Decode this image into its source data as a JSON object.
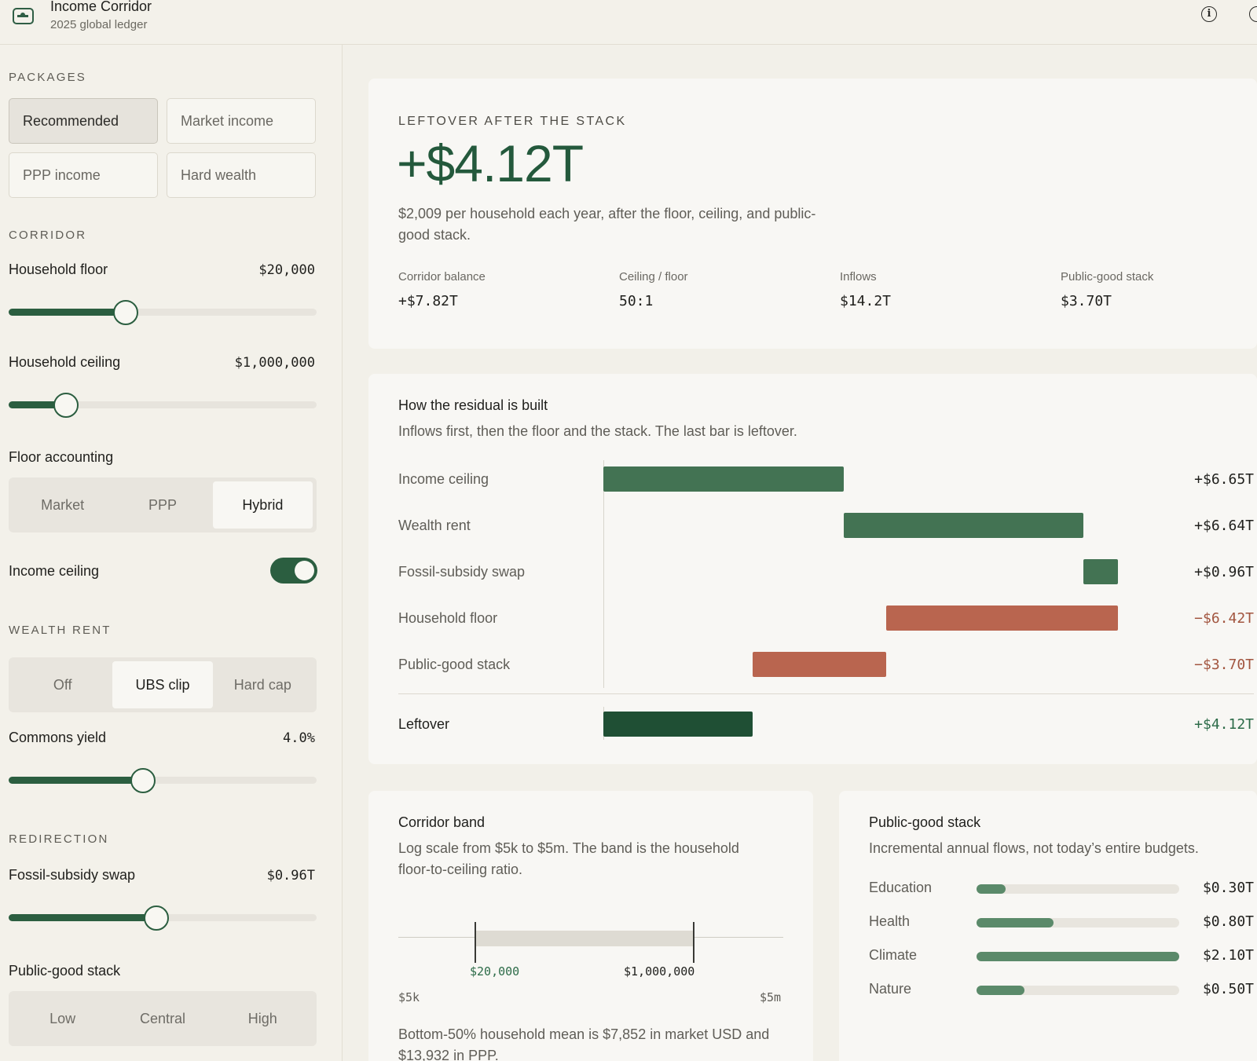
{
  "header": {
    "title": "Income Corridor",
    "subtitle": "2025 global ledger",
    "info_icon": "info-icon",
    "more_icon": "circle-icon"
  },
  "sidebar": {
    "packages_title": "PACKAGES",
    "packages": [
      "Recommended",
      "Market income",
      "PPP income",
      "Hard wealth"
    ],
    "active_package": "Recommended",
    "corridor_title": "CORRIDOR",
    "household_floor": {
      "label": "Household floor",
      "value": "$20,000",
      "level": 0.38
    },
    "household_ceiling": {
      "label": "Household ceiling",
      "value": "$1,000,000",
      "level": 0.185
    },
    "floor_accounting": {
      "label": "Floor accounting",
      "options": [
        "Market",
        "PPP",
        "Hybrid"
      ],
      "selected": "Hybrid"
    },
    "income_ceiling": {
      "label": "Income ceiling",
      "on": true
    },
    "wealth_rent_title": "WEALTH RENT",
    "wealth_rent": {
      "options": [
        "Off",
        "UBS clip",
        "Hard cap"
      ],
      "selected": "UBS clip"
    },
    "commons_yield": {
      "label": "Commons yield",
      "value": "4.0%",
      "level": 0.435
    },
    "redirection_title": "REDIRECTION",
    "fossil_swap": {
      "label": "Fossil-subsidy swap",
      "value": "$0.96T",
      "level": 0.48
    },
    "public_good_stack": {
      "label": "Public-good stack",
      "options": [
        "Low",
        "Central",
        "High"
      ],
      "selected": "Central"
    }
  },
  "summary": {
    "kicker": "LEFTOVER AFTER THE STACK",
    "value": "+$4.12T",
    "description": "$2,009 per household each year, after the floor, ceiling, and public-good stack.",
    "stats": [
      {
        "label": "Corridor balance",
        "value": "+$7.82T"
      },
      {
        "label": "Ceiling / floor",
        "value": "50:1"
      },
      {
        "label": "Inflows",
        "value": "$14.2T"
      },
      {
        "label": "Public-good stack",
        "value": "$3.70T"
      }
    ]
  },
  "residual": {
    "title": "How the residual is built",
    "subtitle": "Inflows first, then the floor and the stack. The last bar is leftover.",
    "rows": [
      {
        "label": "Income ceiling",
        "start": 0,
        "end": 6.65,
        "value": "+$6.65T",
        "kind": "inflow"
      },
      {
        "label": "Wealth rent",
        "start": 6.65,
        "end": 13.29,
        "value": "+$6.64T",
        "kind": "inflow"
      },
      {
        "label": "Fossil-subsidy swap",
        "start": 13.29,
        "end": 14.25,
        "value": "+$0.96T",
        "kind": "inflow"
      },
      {
        "label": "Household floor",
        "start": 7.83,
        "end": 14.25,
        "value": "−$6.42T",
        "kind": "outflow"
      },
      {
        "label": "Public-good stack",
        "start": 4.13,
        "end": 7.83,
        "value": "−$3.70T",
        "kind": "outflow"
      }
    ],
    "leftover": {
      "label": "Leftover",
      "start": 0,
      "end": 4.12,
      "value": "+$4.12T"
    },
    "colors": {
      "inflow": "#437353",
      "outflow": "#b9654f",
      "leftover": "#1f4f34",
      "outflow_text": "#a2553f",
      "leftover_text": "#2c6b48"
    }
  },
  "corridor_band": {
    "title": "Corridor band",
    "subtitle": "Log scale from $5k to $5m. The band is the household floor-to-ceiling ratio.",
    "floor_label": "$20,000",
    "ceiling_label": "$1,000,000",
    "min_label": "$5k",
    "max_label": "$5m",
    "note": "Bottom-50% household mean is $7,852 in market USD and $13,932 in PPP."
  },
  "stack": {
    "title": "Public-good stack",
    "subtitle": "Incremental annual flows, not today’s entire budgets.",
    "items": [
      {
        "label": "Education",
        "value": "$0.30T",
        "amount": 0.3
      },
      {
        "label": "Health",
        "value": "$0.80T",
        "amount": 0.8
      },
      {
        "label": "Climate",
        "value": "$2.10T",
        "amount": 2.1
      },
      {
        "label": "Nature",
        "value": "$0.50T",
        "amount": 0.5
      }
    ],
    "max": 2.1
  }
}
